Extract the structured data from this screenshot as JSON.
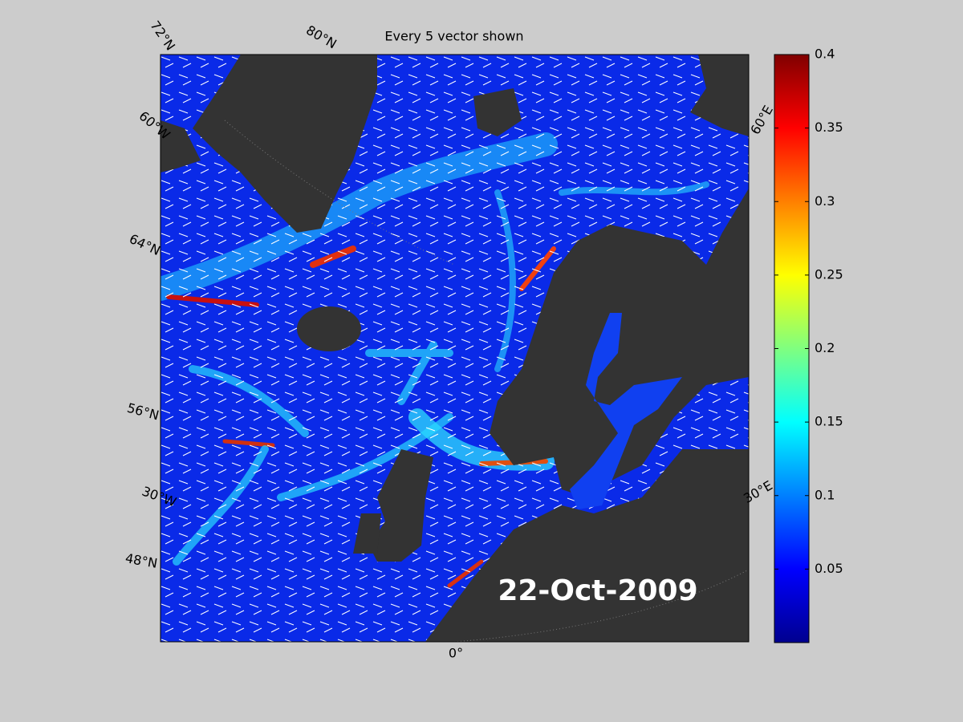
{
  "title": "Every 5 vector shown",
  "date": "22-Oct-2009",
  "graticule_labels": [
    "72°N",
    "80°N",
    "60°W",
    "64°N",
    "56°N",
    "30°W",
    "48°N",
    "0°",
    "30°E",
    "60°E"
  ],
  "colorbar": {
    "ylim": [
      0,
      0.4
    ],
    "ticks": [
      0.05,
      0.1,
      0.15,
      0.2,
      0.25,
      0.3,
      0.35,
      0.4
    ]
  }
}
